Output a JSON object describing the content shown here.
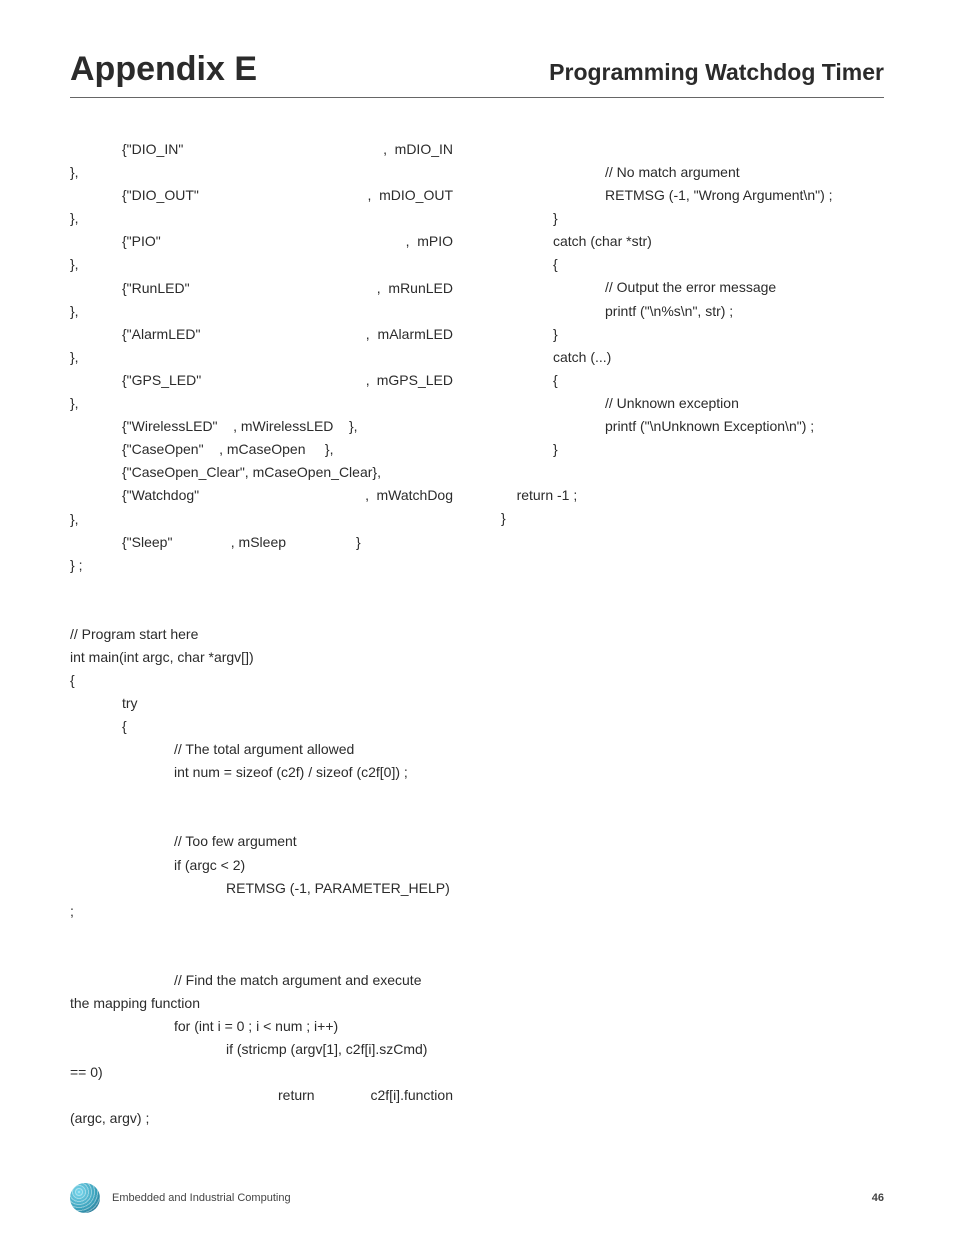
{
  "header": {
    "appendix": "Appendix E",
    "section_title": "Programming Watchdog Timer"
  },
  "left_lines": [
    {
      "cls": "i1 justify",
      "t": "{\"DIO_IN\"                          , mDIO_IN"
    },
    {
      "cls": "",
      "t": "},"
    },
    {
      "cls": "i1 justify",
      "t": "{\"DIO_OUT\"                      , mDIO_OUT"
    },
    {
      "cls": "",
      "t": "},"
    },
    {
      "cls": "i1 justify",
      "t": "{\"PIO\"                                , mPIO"
    },
    {
      "cls": "",
      "t": "},"
    },
    {
      "cls": "i1 justify",
      "t": "{\"RunLED\"                        , mRunLED"
    },
    {
      "cls": "",
      "t": "},"
    },
    {
      "cls": "i1 justify",
      "t": "{\"AlarmLED\"                     , mAlarmLED"
    },
    {
      "cls": "",
      "t": "},"
    },
    {
      "cls": "i1 justify",
      "t": "{\"GPS_LED\"                       , mGPS_LED"
    },
    {
      "cls": "",
      "t": "},"
    },
    {
      "cls": "i1",
      "t": "{\"WirelessLED\"    , mWirelessLED    },"
    },
    {
      "cls": "i1",
      "t": "{\"CaseOpen\"    , mCaseOpen     },"
    },
    {
      "cls": "i1",
      "t": "{\"CaseOpen_Clear\", mCaseOpen_Clear},"
    },
    {
      "cls": "i1 justify",
      "t": "{\"Watchdog\"                      , mWatchDog"
    },
    {
      "cls": "",
      "t": "},"
    },
    {
      "cls": "i1",
      "t": "{\"Sleep\"               , mSleep                  }"
    },
    {
      "cls": "",
      "t": "} ;"
    },
    {
      "cls": "blank",
      "t": ""
    },
    {
      "cls": "blank",
      "t": ""
    },
    {
      "cls": "",
      "t": "// Program start here"
    },
    {
      "cls": "",
      "t": "int main(int argc, char *argv[])"
    },
    {
      "cls": "",
      "t": "{"
    },
    {
      "cls": "i1",
      "t": "try"
    },
    {
      "cls": "i1",
      "t": "{"
    },
    {
      "cls": "i2",
      "t": "// The total argument allowed"
    },
    {
      "cls": "i2",
      "t": "int num = sizeof (c2f) / sizeof (c2f[0]) ;"
    },
    {
      "cls": "blank",
      "t": ""
    },
    {
      "cls": "blank",
      "t": ""
    },
    {
      "cls": "i2",
      "t": "// Too few argument"
    },
    {
      "cls": "i2",
      "t": "if (argc < 2)"
    },
    {
      "cls": "i3",
      "t": "RETMSG (-1, PARAMETER_HELP)"
    },
    {
      "cls": "",
      "t": ";"
    },
    {
      "cls": "blank",
      "t": ""
    },
    {
      "cls": "blank",
      "t": ""
    },
    {
      "cls": "i2",
      "t": "// Find the match argument and execute"
    },
    {
      "cls": "",
      "t": "the mapping function"
    },
    {
      "cls": "i2",
      "t": "for (int i = 0 ; i < num ; i++)"
    },
    {
      "cls": "i3",
      "t": "if (stricmp (argv[1], c2f[i].szCmd)"
    },
    {
      "cls": "",
      "t": "== 0)"
    },
    {
      "cls": "i4 justify",
      "t": "return     c2f[i].function"
    },
    {
      "cls": "",
      "t": "(argc, argv) ;"
    }
  ],
  "right_lines": [
    {
      "cls": "blank",
      "t": ""
    },
    {
      "cls": "i2",
      "t": "// No match argument"
    },
    {
      "cls": "i2",
      "t": "RETMSG (-1, \"Wrong Argument\\n\") ;"
    },
    {
      "cls": "i1",
      "t": "}"
    },
    {
      "cls": "i1",
      "t": "catch (char *str)"
    },
    {
      "cls": "i1",
      "t": "{"
    },
    {
      "cls": "i2",
      "t": "// Output the error message"
    },
    {
      "cls": "i2",
      "t": "printf (\"\\n%s\\n\", str) ;"
    },
    {
      "cls": "i1",
      "t": "}"
    },
    {
      "cls": "i1",
      "t": "catch (...)"
    },
    {
      "cls": "i1",
      "t": "{"
    },
    {
      "cls": "i2",
      "t": "// Unknown exception"
    },
    {
      "cls": "i2",
      "t": "printf (\"\\nUnknown Exception\\n\") ;"
    },
    {
      "cls": "i1",
      "t": "}"
    },
    {
      "cls": "blank",
      "t": ""
    },
    {
      "cls": "",
      "t": "    return -1 ;"
    },
    {
      "cls": "",
      "t": "}"
    }
  ],
  "footer": {
    "text": "Embedded and Industrial Computing",
    "page": "46"
  }
}
